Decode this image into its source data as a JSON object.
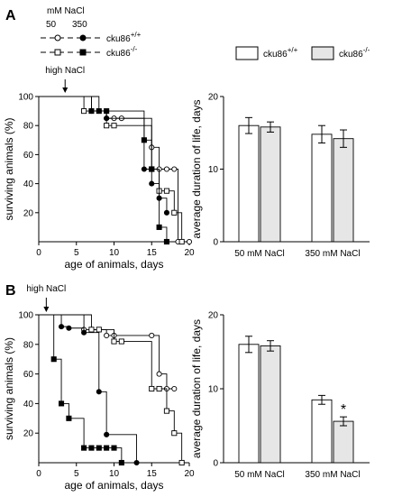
{
  "figure": {
    "panel_A": "A",
    "panel_B": "B",
    "legend_km": {
      "title": "mM NaCl",
      "col1": "50",
      "col2": "350",
      "row1_label": "cku86",
      "row1_sup": "+/+",
      "row2_label": "cku86",
      "row2_sup": "-/-"
    },
    "legend_bar": {
      "entry1": "cku86",
      "entry1_sup": "+/+",
      "entry2": "cku86",
      "entry2_sup": "-/-",
      "colors": {
        "wt": "#ffffff",
        "ko": "#e6e6e6"
      }
    }
  },
  "chart_data": [
    {
      "id": "A_survival",
      "type": "line",
      "annotation": "high NaCl",
      "annotation_x": 3.5,
      "xlabel": "age of animals, days",
      "ylabel": "surviving animals (%)",
      "xlim": [
        0,
        20
      ],
      "ylim": [
        0,
        100
      ],
      "xticks": [
        0,
        5,
        10,
        15,
        20
      ],
      "yticks": [
        20,
        40,
        60,
        80,
        100
      ],
      "series": [
        {
          "name": "cku86 +/+ 50 mM NaCl",
          "marker": "open-circle",
          "x": [
            0,
            7,
            9,
            10,
            11,
            15,
            16,
            17,
            18,
            18.5,
            20
          ],
          "y": [
            100,
            90,
            85,
            85,
            85,
            65,
            50,
            50,
            50,
            0,
            0
          ]
        },
        {
          "name": "cku86 +/+ 350 mM NaCl",
          "marker": "filled-circle",
          "x": [
            0,
            8,
            9,
            14,
            15,
            16,
            17
          ],
          "y": [
            100,
            90,
            85,
            50,
            40,
            30,
            20
          ]
        },
        {
          "name": "cku86 -/- 50 mM NaCl",
          "marker": "open-square",
          "x": [
            0,
            6,
            9,
            10,
            15,
            16,
            17,
            18,
            19
          ],
          "y": [
            100,
            90,
            80,
            80,
            50,
            35,
            35,
            20,
            0
          ]
        },
        {
          "name": "cku86 -/- 350 mM NaCl",
          "marker": "filled-square",
          "x": [
            0,
            7,
            8,
            9,
            14,
            15,
            16,
            17
          ],
          "y": [
            100,
            90,
            90,
            90,
            70,
            50,
            10,
            0
          ]
        }
      ]
    },
    {
      "id": "A_bars",
      "type": "bar",
      "ylabel": "average duration of life, days",
      "ylim": [
        0,
        20
      ],
      "yticks": [
        0,
        10,
        20
      ],
      "categories": [
        "50 mM NaCl",
        "350 mM NaCl"
      ],
      "series": [
        {
          "name": "cku86 +/+",
          "values": [
            16.0,
            14.8
          ],
          "errors": [
            1.1,
            1.2
          ]
        },
        {
          "name": "cku86 -/-",
          "values": [
            15.8,
            14.2
          ],
          "errors": [
            0.7,
            1.2
          ]
        }
      ]
    },
    {
      "id": "B_survival",
      "type": "line",
      "annotation": "high NaCl",
      "annotation_x": 1,
      "xlabel": "age of animals, days",
      "ylabel": "surviving animals (%)",
      "xlim": [
        0,
        20
      ],
      "ylim": [
        0,
        100
      ],
      "xticks": [
        0,
        5,
        10,
        15,
        20
      ],
      "yticks": [
        20,
        40,
        60,
        80,
        100
      ],
      "series": [
        {
          "name": "cku86 +/+ 50 mM NaCl",
          "marker": "open-circle",
          "x": [
            0,
            6,
            9,
            10,
            15,
            16,
            17,
            18
          ],
          "y": [
            100,
            90,
            86,
            86,
            86,
            60,
            50,
            50
          ]
        },
        {
          "name": "cku86 +/+ 350 mM NaCl",
          "marker": "filled-circle",
          "x": [
            0,
            3,
            4,
            6,
            8,
            9,
            13
          ],
          "y": [
            100,
            92,
            91,
            88,
            48,
            19,
            0
          ]
        },
        {
          "name": "cku86 -/- 50 mM NaCl",
          "marker": "open-square",
          "x": [
            0,
            7,
            8,
            10,
            11,
            15,
            16,
            17,
            18,
            19
          ],
          "y": [
            100,
            90,
            90,
            82,
            82,
            50,
            50,
            35,
            20,
            0
          ]
        },
        {
          "name": "cku86 -/- 350 mM NaCl",
          "marker": "filled-square",
          "x": [
            0,
            2,
            3,
            4,
            6,
            7,
            8,
            9,
            10,
            11
          ],
          "y": [
            100,
            70,
            40,
            30,
            10,
            10,
            10,
            10,
            10,
            0
          ]
        }
      ]
    },
    {
      "id": "B_bars",
      "type": "bar",
      "ylabel": "average duration of life, days",
      "ylim": [
        0,
        20
      ],
      "yticks": [
        0,
        10,
        20
      ],
      "categories": [
        "50 mM NaCl",
        "350 mM NaCl"
      ],
      "annotation": "*",
      "series": [
        {
          "name": "cku86 +/+",
          "values": [
            16.0,
            8.5
          ],
          "errors": [
            1.1,
            0.6
          ]
        },
        {
          "name": "cku86 -/-",
          "values": [
            15.8,
            5.6
          ],
          "errors": [
            0.7,
            0.6
          ]
        }
      ]
    }
  ]
}
